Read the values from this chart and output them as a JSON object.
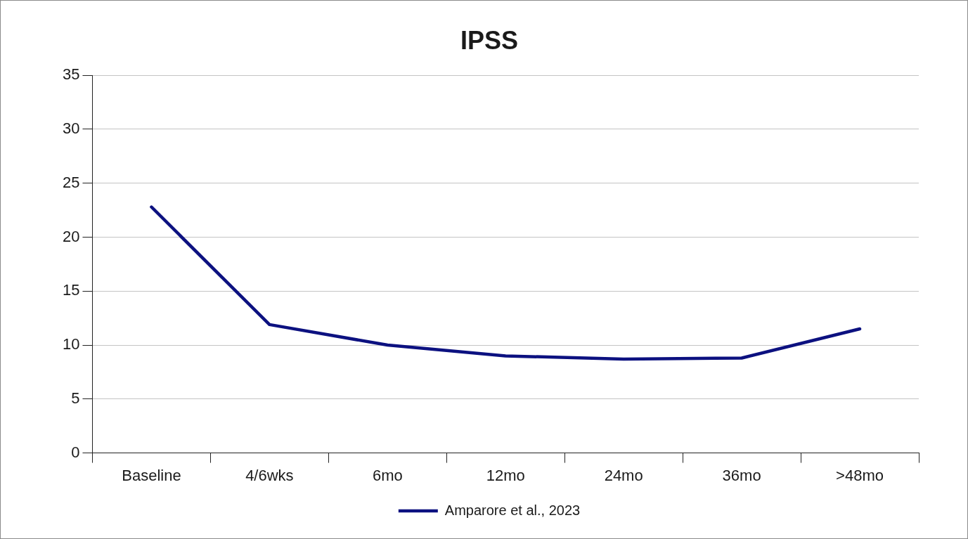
{
  "chart_data": {
    "type": "line",
    "title": "IPSS",
    "categories": [
      "Baseline",
      "4/6wks",
      "6mo",
      "12mo",
      "24mo",
      "36mo",
      ">48mo"
    ],
    "series": [
      {
        "name": "Amparore et al., 2023",
        "color": "#0c1180",
        "values": [
          22.8,
          11.9,
          10.0,
          9.0,
          8.7,
          8.8,
          11.5
        ]
      }
    ],
    "ylim": [
      0,
      35
    ],
    "yticks": [
      0,
      5,
      10,
      15,
      20,
      25,
      30,
      35
    ],
    "grid": "y",
    "legend": "bottom",
    "marker": "none",
    "line_style": "solid"
  }
}
